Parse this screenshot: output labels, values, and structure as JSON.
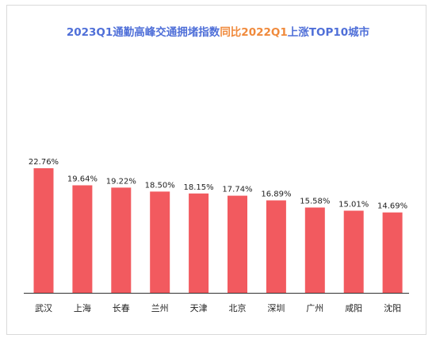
{
  "chart_data": {
    "type": "bar",
    "title_parts": [
      "2023Q1通勤高峰交通拥堵指数",
      "同比2022Q1",
      "上涨TOP10城市"
    ],
    "title_colors": [
      "#4f6fd8",
      "#f08a3c",
      "#4f6fd8"
    ],
    "categories": [
      "武汉",
      "上海",
      "长春",
      "兰州",
      "天津",
      "北京",
      "深圳",
      "广州",
      "咸阳",
      "沈阳"
    ],
    "values": [
      22.76,
      19.64,
      19.22,
      18.5,
      18.15,
      17.74,
      16.89,
      15.58,
      15.01,
      14.69
    ],
    "value_labels": [
      "22.76%",
      "19.64%",
      "19.22%",
      "18.50%",
      "18.15%",
      "17.74%",
      "16.89%",
      "15.58%",
      "15.01%",
      "14.69%"
    ],
    "bar_color": "#f25a5f",
    "ylim": [
      0,
      22.76
    ],
    "grid": false,
    "legend": "none"
  }
}
